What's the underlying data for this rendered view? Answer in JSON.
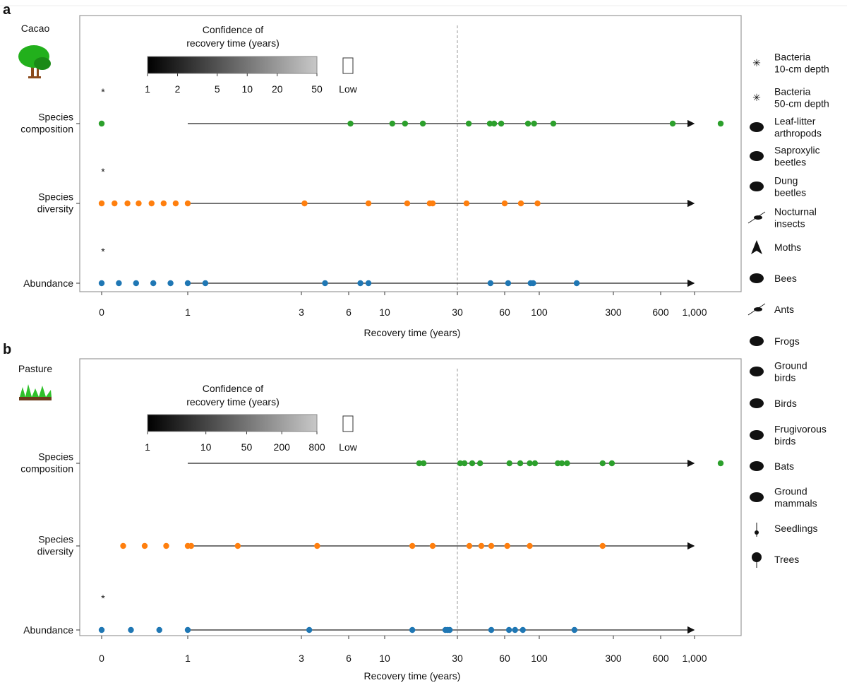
{
  "chart_data": [
    {
      "type": "scatter",
      "panel_letter": "a",
      "land_use": "Cacao",
      "xlabel": "Recovery time (years)",
      "x_ticks": [
        0,
        1,
        3,
        6,
        10,
        30,
        60,
        100,
        300,
        600,
        1000
      ],
      "x_tick_labels": [
        "0",
        "1",
        "3",
        "6",
        "10",
        "30",
        "60",
        "100",
        "300",
        "600",
        "1,000"
      ],
      "reference_line": 30,
      "colorbar": {
        "title": [
          "Confidence of",
          "recovery time (years)"
        ],
        "scale": "log",
        "ticks": [
          1,
          2,
          5,
          10,
          20,
          50
        ],
        "tick_labels": [
          "1",
          "2",
          "5",
          "10",
          "20",
          "50"
        ],
        "low_label": "Low",
        "colors": [
          "#000000",
          "#c8c8c8"
        ]
      },
      "rows": [
        {
          "label": [
            "Species",
            "composition"
          ],
          "color": "#2ca02c",
          "asterisk": "*",
          "points": [
            0,
            6.2,
            12.1,
            15.6,
            20.5,
            37.2,
            50.6,
            53.3,
            57.8,
            87,
            94,
            138,
            742
          ],
          "not_recovered": 1
        },
        {
          "label": [
            "Species",
            "diversity"
          ],
          "color": "#ff7f0e",
          "asterisk": "*",
          "points": [
            0,
            0.15,
            0.3,
            0.43,
            0.58,
            0.72,
            0.86,
            1,
            3.2,
            8.2,
            16.2,
            22.4,
            23.2,
            35.8,
            60,
            78.8,
            98
          ],
          "not_recovered": 0
        },
        {
          "label": [
            "Abundance"
          ],
          "color": "#1f77b4",
          "asterisk": "*",
          "points": [
            0,
            0.2,
            0.4,
            0.6,
            0.8,
            1,
            1.31,
            4.5,
            7.3,
            8.2,
            51,
            64,
            90,
            93,
            201
          ],
          "not_recovered": 0
        }
      ]
    },
    {
      "type": "scatter",
      "panel_letter": "b",
      "land_use": "Pasture",
      "xlabel": "Recovery time (years)",
      "x_ticks": [
        0,
        1,
        3,
        6,
        10,
        30,
        60,
        100,
        300,
        600,
        1000
      ],
      "x_tick_labels": [
        "0",
        "1",
        "3",
        "6",
        "10",
        "30",
        "60",
        "100",
        "300",
        "600",
        "1,000"
      ],
      "reference_line": 30,
      "colorbar": {
        "title": [
          "Confidence of",
          "recovery time (years)"
        ],
        "scale": "log",
        "ticks": [
          1,
          10,
          50,
          200,
          800
        ],
        "tick_labels": [
          "1",
          "10",
          "50",
          "200",
          "800"
        ],
        "low_label": "Low",
        "colors": [
          "#000000",
          "#c8c8c8"
        ]
      },
      "rows": [
        {
          "label": [
            "Species",
            "composition"
          ],
          "color": "#2ca02c",
          "asterisk": "",
          "points": [
            19.5,
            20.7,
            31.8,
            34.5,
            39.4,
            44.4,
            65.5,
            78,
            89,
            95,
            150,
            161,
            175,
            271,
            296
          ],
          "not_recovered": 1
        },
        {
          "label": [
            "Species",
            "diversity"
          ],
          "color": "#ff7f0e",
          "asterisk": "",
          "points": [
            0.25,
            0.5,
            0.75,
            1,
            1.06,
            1.88,
            4,
            17.6,
            23.2,
            37.6,
            45.2,
            51.5,
            63,
            89,
            271
          ],
          "not_recovered": 0
        },
        {
          "label": [
            "Abundance"
          ],
          "color": "#1f77b4",
          "asterisk": "*",
          "points": [
            0,
            0.34,
            0.67,
            1,
            3.5,
            17.6,
            26.7,
            27.3,
            27.9,
            51.5,
            65,
            72,
            81,
            195
          ],
          "not_recovered": 0
        }
      ]
    }
  ],
  "legend": {
    "items": [
      {
        "label": [
          "Bacteria",
          "10-cm depth"
        ],
        "icon": "bacteria-10cm-icon",
        "color": "#b0b0b0"
      },
      {
        "label": [
          "Bacteria",
          "50-cm depth"
        ],
        "icon": "bacteria-50cm-icon",
        "color": "#111111"
      },
      {
        "label": [
          "Leaf-litter",
          "arthropods"
        ],
        "icon": "leaf-litter-arthropod-icon",
        "color": "#111111"
      },
      {
        "label": [
          "Saproxylic",
          "beetles"
        ],
        "icon": "saproxylic-beetle-icon",
        "color": "#111111"
      },
      {
        "label": [
          "Dung",
          "beetles"
        ],
        "icon": "dung-beetle-icon",
        "color": "#111111"
      },
      {
        "label": [
          "Nocturnal",
          "insects"
        ],
        "icon": "nocturnal-insect-icon",
        "color": "#111111"
      },
      {
        "label": [
          "Moths"
        ],
        "icon": "moth-icon",
        "color": "#111111"
      },
      {
        "label": [
          "Bees"
        ],
        "icon": "bee-icon",
        "color": "#111111"
      },
      {
        "label": [
          "Ants"
        ],
        "icon": "ant-icon",
        "color": "#111111"
      },
      {
        "label": [
          "Frogs"
        ],
        "icon": "frog-icon",
        "color": "#111111"
      },
      {
        "label": [
          "Ground",
          "birds"
        ],
        "icon": "ground-bird-icon",
        "color": "#111111"
      },
      {
        "label": [
          "Birds"
        ],
        "icon": "bird-icon",
        "color": "#111111"
      },
      {
        "label": [
          "Frugivorous",
          "birds"
        ],
        "icon": "frugivorous-bird-icon",
        "color": "#111111"
      },
      {
        "label": [
          "Bats"
        ],
        "icon": "bat-icon",
        "color": "#111111"
      },
      {
        "label": [
          "Ground",
          "mammals"
        ],
        "icon": "ground-mammal-icon",
        "color": "#111111"
      },
      {
        "label": [
          "Seedlings"
        ],
        "icon": "seedling-icon",
        "color": "#111111"
      },
      {
        "label": [
          "Trees"
        ],
        "icon": "tree-icon",
        "color": "#111111"
      }
    ]
  }
}
